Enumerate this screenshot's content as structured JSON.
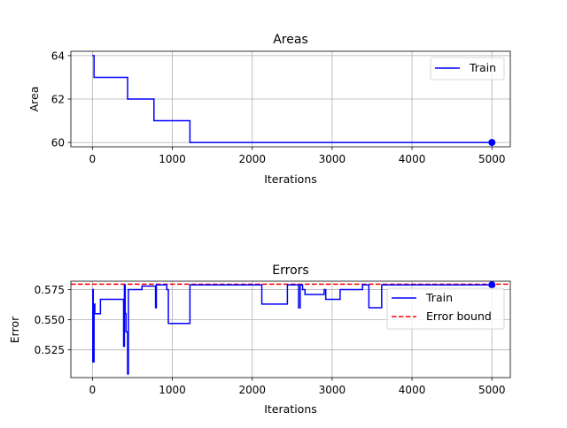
{
  "colors": {
    "train": "#0000ff",
    "bound": "#ff0000",
    "grid": "#b0b0b0"
  },
  "chart_data": [
    {
      "type": "line",
      "title": "Areas",
      "xlabel": "Iterations",
      "ylabel": "Area",
      "xlim": [
        -270,
        5230
      ],
      "ylim": [
        59.8,
        64.2
      ],
      "xticks": [
        0,
        1000,
        2000,
        3000,
        4000,
        5000
      ],
      "yticks": [
        60,
        62,
        64
      ],
      "grid": true,
      "legend": {
        "placement": "top-right",
        "entries": [
          "Train"
        ]
      },
      "series": [
        {
          "name": "Train",
          "step": true,
          "x": [
            0,
            20,
            440,
            770,
            1220,
            5000
          ],
          "y": [
            64,
            63,
            62,
            61,
            60,
            60
          ],
          "end_marker": true
        }
      ]
    },
    {
      "type": "line",
      "title": "Errors",
      "xlabel": "Iterations",
      "ylabel": "Error",
      "xlim": [
        -270,
        5230
      ],
      "ylim": [
        0.502,
        0.582
      ],
      "xticks": [
        0,
        1000,
        2000,
        3000,
        4000,
        5000
      ],
      "yticks": [
        0.525,
        0.55,
        0.575
      ],
      "grid": true,
      "legend": {
        "placement": "right",
        "entries": [
          "Train",
          "Error bound"
        ]
      },
      "error_bound": {
        "name": "Error bound",
        "y": 0.5795
      },
      "series": [
        {
          "name": "Train",
          "step": true,
          "x": [
            0,
            5,
            10,
            20,
            30,
            50,
            100,
            120,
            390,
            400,
            410,
            420,
            440,
            450,
            460,
            620,
            790,
            800,
            830,
            850,
            930,
            950,
            1200,
            1220,
            2120,
            2440,
            2580,
            2600,
            2630,
            2660,
            2900,
            2920,
            3100,
            3380,
            3420,
            3460,
            3600,
            3620,
            5000
          ],
          "y": [
            0.515,
            0.575,
            0.515,
            0.563,
            0.555,
            0.555,
            0.567,
            0.567,
            0.528,
            0.579,
            0.555,
            0.54,
            0.505,
            0.575,
            0.575,
            0.578,
            0.56,
            0.579,
            0.579,
            0.579,
            0.575,
            0.547,
            0.547,
            0.579,
            0.563,
            0.579,
            0.56,
            0.579,
            0.575,
            0.571,
            0.575,
            0.567,
            0.575,
            0.579,
            0.579,
            0.56,
            0.56,
            0.579,
            0.579
          ],
          "end_marker": true
        }
      ]
    }
  ]
}
